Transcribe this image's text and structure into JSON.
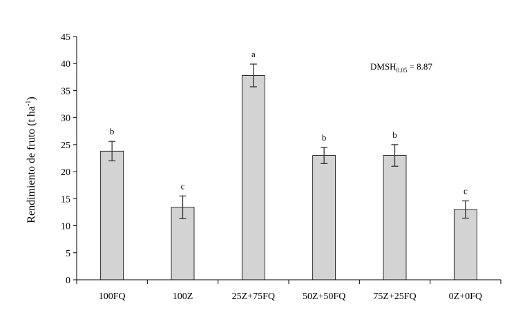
{
  "chart_data": {
    "type": "bar",
    "title": "",
    "xlabel": "",
    "ylabel": "Rendimiento de fruto (t ha",
    "ylabel_sup": "-1",
    "ylabel_close": ")",
    "ylim": [
      0,
      45
    ],
    "yticks": [
      0,
      5,
      10,
      15,
      20,
      25,
      30,
      35,
      40,
      45
    ],
    "categories": [
      "100FQ",
      "100Z",
      "25Z+75FQ",
      "50Z+50FQ",
      "75Z+25FQ",
      "0Z+0FQ"
    ],
    "values": [
      23.8,
      13.4,
      37.8,
      23.0,
      23.0,
      13.0
    ],
    "errors": [
      1.8,
      2.1,
      2.1,
      1.5,
      2.0,
      1.6
    ],
    "significance": [
      "b",
      "c",
      "a",
      "b",
      "b",
      "c"
    ],
    "annotation": {
      "main": "DMSH",
      "sub": "0.05",
      "rest": " = 8.87"
    },
    "bar_color": "#d3d3d3",
    "grid": false,
    "legend": "none"
  }
}
